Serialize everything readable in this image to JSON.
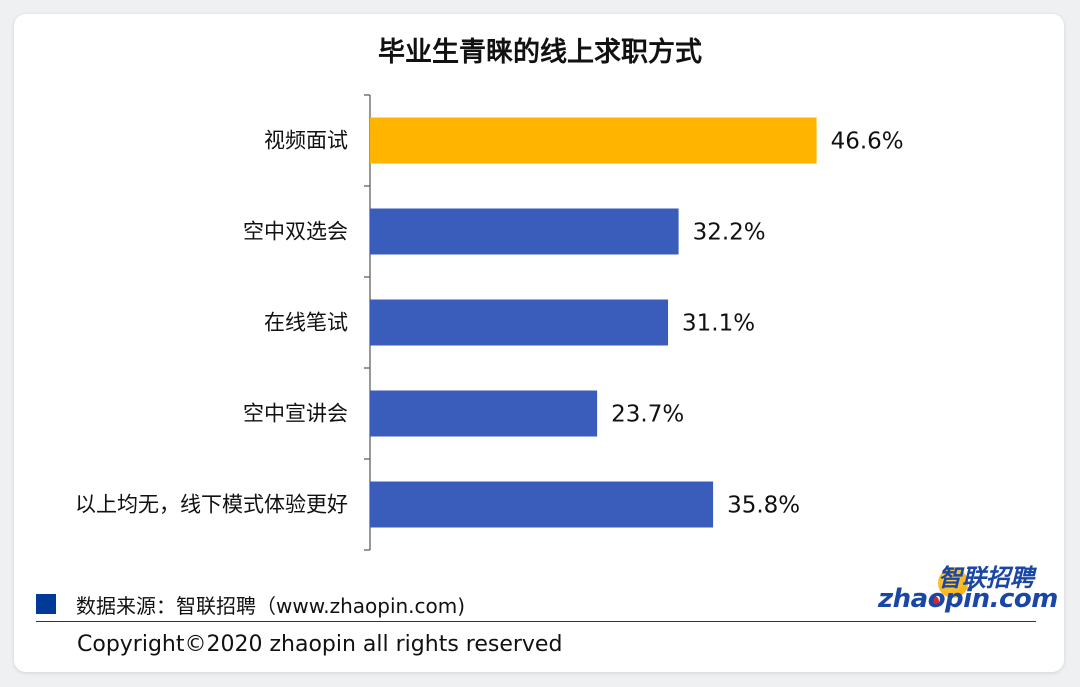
{
  "chart_data": {
    "type": "bar",
    "orientation": "horizontal",
    "title": "毕业生青睐的线上求职方式",
    "categories": [
      "视频面试",
      "空中双选会",
      "在线笔试",
      "空中宣讲会",
      "以上均无，线下模式体验更好"
    ],
    "values": [
      46.6,
      32.2,
      31.1,
      23.7,
      35.8
    ],
    "value_labels": [
      "46.6%",
      "32.2%",
      "31.1%",
      "23.7%",
      "35.8%"
    ],
    "bar_colors": [
      "#ffb400",
      "#3a5dbc",
      "#3a5dbc",
      "#3a5dbc",
      "#3a5dbc"
    ],
    "xlim": [
      0,
      60
    ],
    "grid": false,
    "legend": "none"
  },
  "footer": {
    "source": "数据来源：智联招聘（www.zhaopin.com)",
    "copyright": "Copyright©2020 zhaopin all rights reserved",
    "legend_color": "#003a96"
  },
  "logo": {
    "cn": "智联招聘",
    "en": "zhaopin.com"
  }
}
